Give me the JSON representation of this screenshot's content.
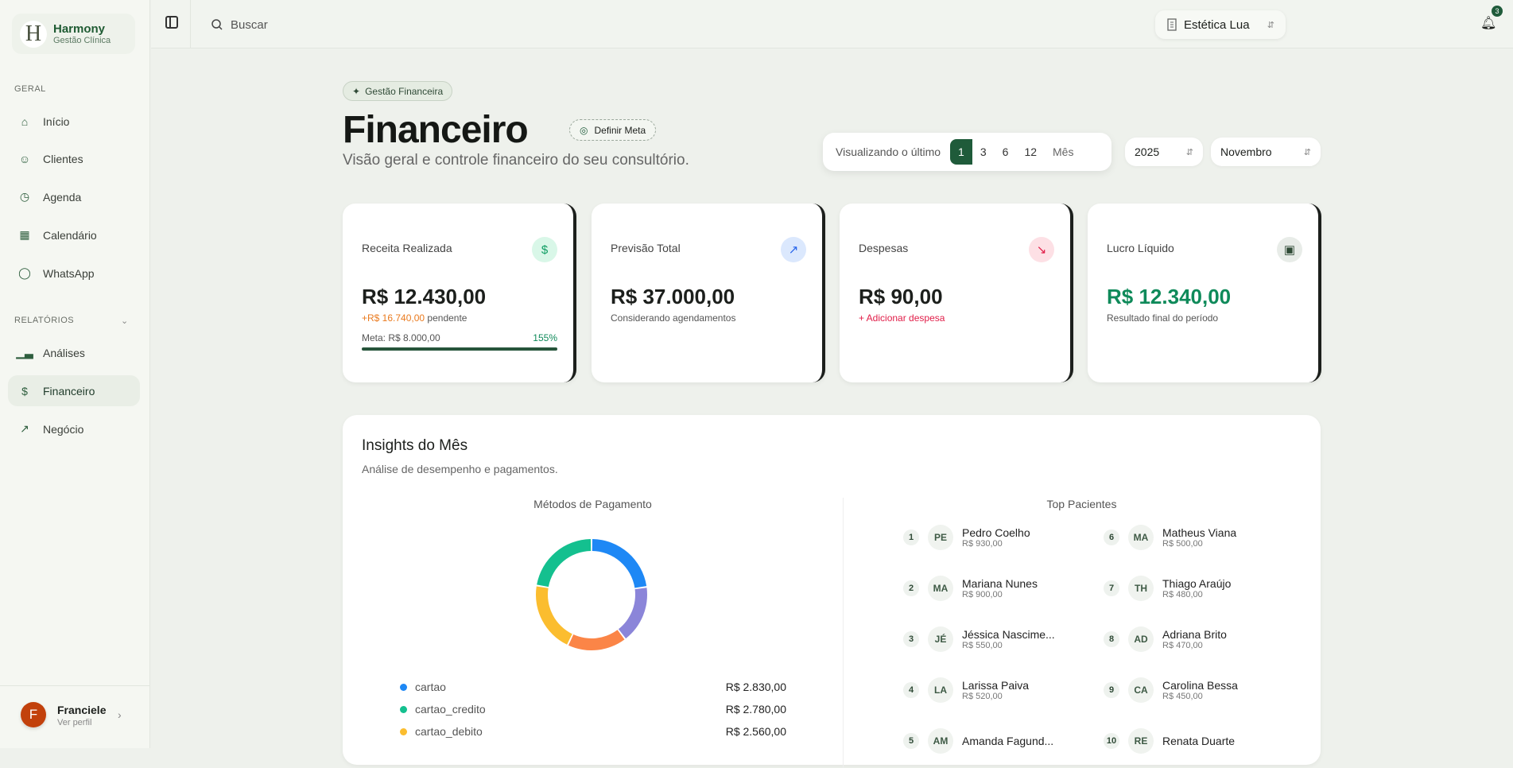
{
  "brand": {
    "name": "Harmony",
    "subtitle": "Gestão Clínica",
    "logo_letter": "H"
  },
  "sidebar": {
    "section_general": "GERAL",
    "items": [
      {
        "label": "Início",
        "icon": "home-icon"
      },
      {
        "label": "Clientes",
        "icon": "users-icon"
      },
      {
        "label": "Agenda",
        "icon": "calendar-clock-icon"
      },
      {
        "label": "Calendário",
        "icon": "calendar-icon"
      },
      {
        "label": "WhatsApp",
        "icon": "chat-icon"
      }
    ],
    "section_reports": "RELATÓRIOS",
    "reports": [
      {
        "label": "Análises",
        "icon": "bar-chart-icon"
      },
      {
        "label": "Financeiro",
        "icon": "dollar-icon",
        "active": true
      },
      {
        "label": "Negócio",
        "icon": "trending-up-icon"
      }
    ],
    "user": {
      "initial": "F",
      "name": "Franciele",
      "link": "Ver perfil"
    }
  },
  "header": {
    "search_placeholder": "Buscar",
    "clinic": "Estética Lua",
    "notifications": "3"
  },
  "page": {
    "badge": "Gestão Financeira",
    "title": "Financeiro",
    "goal_button": "Definir Meta",
    "subtitle": "Visão geral e controle financeiro do seu consultório."
  },
  "filters": {
    "range_label": "Visualizando o último",
    "options": [
      "1",
      "3",
      "6",
      "12"
    ],
    "selected": "1",
    "unit": "Mês",
    "year": "2025",
    "month": "Novembro"
  },
  "cards": [
    {
      "label": "Receita Realizada",
      "value": "R$ 12.430,00",
      "pending": "+R$ 16.740,00",
      "pending_suffix": "pendente",
      "goal": "Meta: R$ 8.000,00",
      "goal_pct": "155%",
      "goal_progress": 1.0,
      "icon": "dollar-icon",
      "accent": "#10b981"
    },
    {
      "label": "Previsão Total",
      "value": "R$ 37.000,00",
      "sub": "Considerando agendamentos",
      "icon": "trending-up-icon",
      "accent": "#3b82f6"
    },
    {
      "label": "Despesas",
      "value": "R$ 90,00",
      "sub": "+ Adicionar despesa",
      "icon": "trending-down-icon",
      "accent": "#f43f5e"
    },
    {
      "label": "Lucro Líquido",
      "value": "R$ 12.340,00",
      "sub": "Resultado final do período",
      "icon": "wallet-icon",
      "accent": "#1f5b3a"
    }
  ],
  "insights": {
    "title": "Insights do Mês",
    "description": "Análise de desempenho e pagamentos.",
    "payments_title": "Métodos de Pagamento",
    "patients_title": "Top Pacientes",
    "patients": [
      {
        "rank": "1",
        "initials": "PE",
        "name": "Pedro Coelho",
        "amount": "R$ 930,00"
      },
      {
        "rank": "2",
        "initials": "MA",
        "name": "Mariana Nunes",
        "amount": "R$ 900,00"
      },
      {
        "rank": "3",
        "initials": "JÉ",
        "name": "Jéssica Nascime...",
        "amount": "R$ 550,00"
      },
      {
        "rank": "4",
        "initials": "LA",
        "name": "Larissa Paiva",
        "amount": "R$ 520,00"
      },
      {
        "rank": "5",
        "initials": "AM",
        "name": "Amanda Fagund...",
        "amount": ""
      },
      {
        "rank": "6",
        "initials": "MA",
        "name": "Matheus Viana",
        "amount": "R$ 500,00"
      },
      {
        "rank": "7",
        "initials": "TH",
        "name": "Thiago Araújo",
        "amount": "R$ 480,00"
      },
      {
        "rank": "8",
        "initials": "AD",
        "name": "Adriana Brito",
        "amount": "R$ 470,00"
      },
      {
        "rank": "9",
        "initials": "CA",
        "name": "Carolina Bessa",
        "amount": "R$ 450,00"
      },
      {
        "rank": "10",
        "initials": "RE",
        "name": "Renata Duarte",
        "amount": ""
      }
    ]
  },
  "chart_data": {
    "type": "pie",
    "title": "Métodos de Pagamento",
    "donut": true,
    "slices": [
      {
        "name": "cartao",
        "value": 2830,
        "label": "R$ 2.830,00",
        "color": "#1e88f5"
      },
      {
        "name": "",
        "value": 2100,
        "color": "#8b85d9"
      },
      {
        "name": "",
        "value": 2160,
        "color": "#fb8547"
      },
      {
        "name": "cartao_debito",
        "value": 2560,
        "label": "R$ 2.560,00",
        "color": "#fbbd2f"
      },
      {
        "name": "cartao_credito",
        "value": 2780,
        "label": "R$ 2.780,00",
        "color": "#14c08f"
      }
    ],
    "legend": [
      {
        "name": "cartao",
        "label": "R$ 2.830,00",
        "color": "#1e88f5"
      },
      {
        "name": "cartao_credito",
        "label": "R$ 2.780,00",
        "color": "#14c08f"
      },
      {
        "name": "cartao_debito",
        "label": "R$ 2.560,00",
        "color": "#fbbd2f"
      }
    ]
  }
}
